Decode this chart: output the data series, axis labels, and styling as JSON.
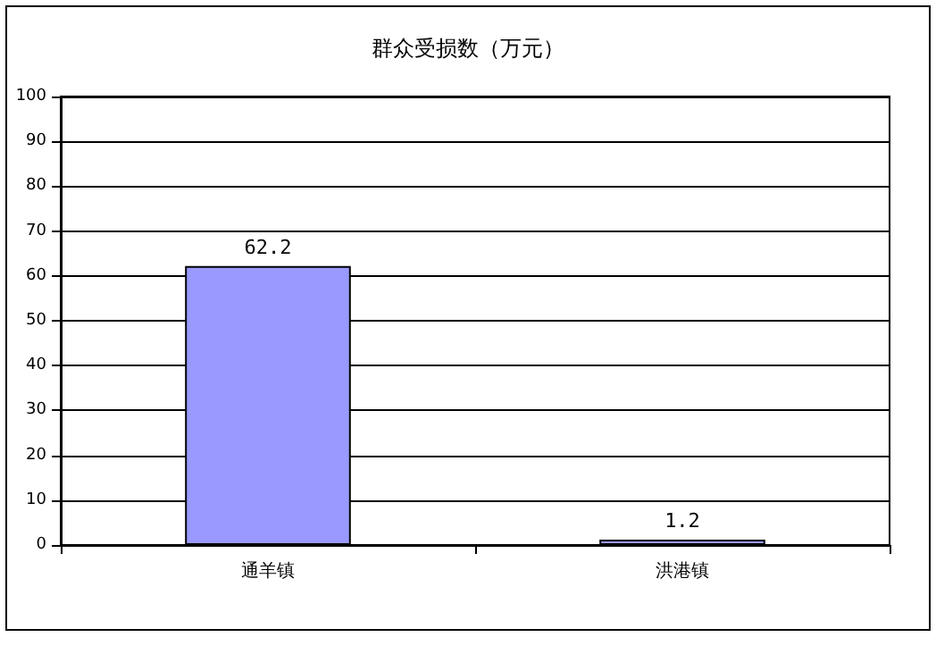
{
  "chart_data": {
    "type": "bar",
    "title": "群众受损数（万元）",
    "categories": [
      "通羊镇",
      "洪港镇"
    ],
    "values": [
      62.2,
      1.2
    ],
    "color": "#9999ff",
    "ylim": [
      0,
      100
    ],
    "yticks": [
      0,
      10,
      20,
      30,
      40,
      50,
      60,
      70,
      80,
      90,
      100
    ],
    "grid": "y",
    "data_labels": true
  }
}
